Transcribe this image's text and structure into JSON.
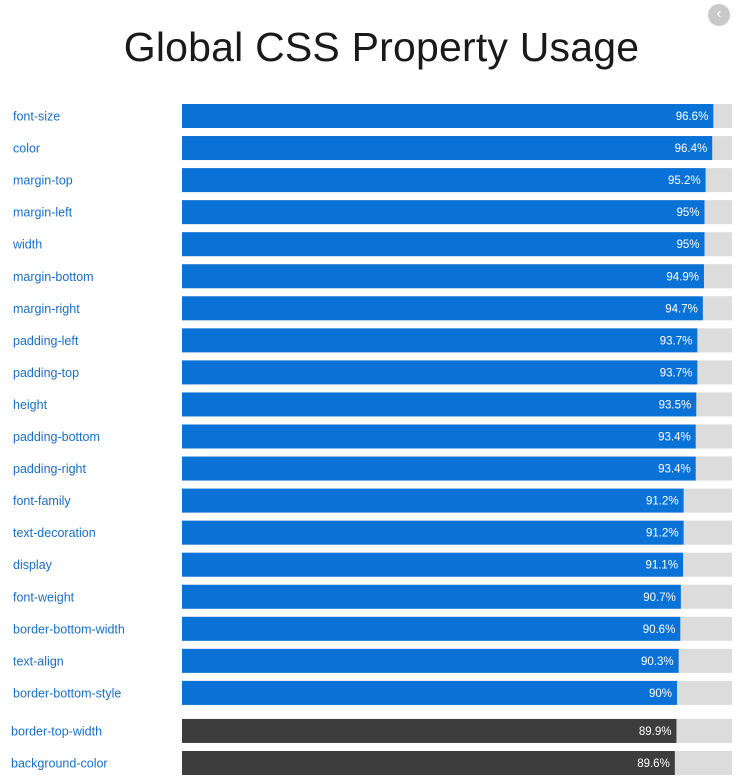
{
  "header": {
    "title": "Global CSS Property Usage",
    "back_icon": "chevron-left-icon"
  },
  "colors": {
    "bar_primary": "#0a72d6",
    "bar_secondary": "#3d3d3d",
    "track": "#dcdcdc",
    "label": "#1a6fc4",
    "value_text": "#ffffff"
  },
  "chart_data": {
    "type": "bar",
    "orientation": "horizontal",
    "title": "Global CSS Property Usage",
    "xlim": [
      0,
      100
    ],
    "unit": "%",
    "categories": [
      "font-size",
      "color",
      "margin-top",
      "margin-left",
      "width",
      "margin-bottom",
      "margin-right",
      "padding-left",
      "padding-top",
      "height",
      "padding-bottom",
      "padding-right",
      "font-family",
      "text-decoration",
      "display",
      "font-weight",
      "border-bottom-width",
      "text-align",
      "border-bottom-style",
      "border-top-width",
      "background-color"
    ],
    "values": [
      96.6,
      96.4,
      95.2,
      95,
      95,
      94.9,
      94.7,
      93.7,
      93.7,
      93.5,
      93.4,
      93.4,
      91.2,
      91.2,
      91.1,
      90.7,
      90.6,
      90.3,
      90,
      89.9,
      89.6
    ],
    "value_labels": [
      "96.6%",
      "96.4%",
      "95.2%",
      "95%",
      "95%",
      "94.9%",
      "94.7%",
      "93.7%",
      "93.7%",
      "93.5%",
      "93.4%",
      "93.4%",
      "91.2%",
      "91.2%",
      "91.1%",
      "90.7%",
      "90.6%",
      "90.3%",
      "90%",
      "89.9%",
      "89.6%"
    ],
    "highlight_group_size": 19
  }
}
